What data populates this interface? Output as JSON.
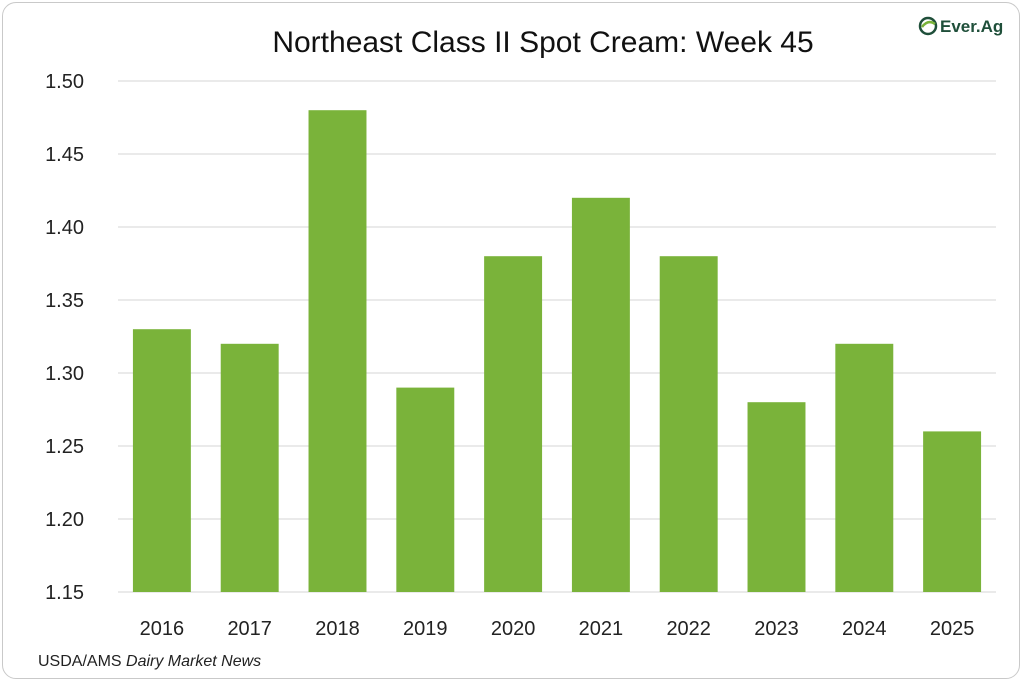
{
  "chart_data": {
    "type": "bar",
    "title": "Northeast Class II Spot Cream: Week 45",
    "categories": [
      "2016",
      "2017",
      "2018",
      "2019",
      "2020",
      "2021",
      "2022",
      "2023",
      "2024",
      "2025"
    ],
    "values": [
      1.33,
      1.32,
      1.48,
      1.29,
      1.38,
      1.42,
      1.38,
      1.28,
      1.32,
      1.26
    ],
    "ylim": [
      1.15,
      1.5
    ],
    "yticks": [
      "1.15",
      "1.20",
      "1.25",
      "1.30",
      "1.35",
      "1.40",
      "1.45",
      "1.50"
    ],
    "xlabel": "",
    "ylabel": "",
    "grid": true,
    "bar_color": "#7ab33a",
    "grid_color": "#d4d4d4"
  },
  "source": {
    "prefix": "USDA/AMS ",
    "italic": "Dairy Market News"
  },
  "logo": {
    "text": "Ever.Ag",
    "icon": "everag-logo-icon",
    "color": "#1f4f3a"
  }
}
